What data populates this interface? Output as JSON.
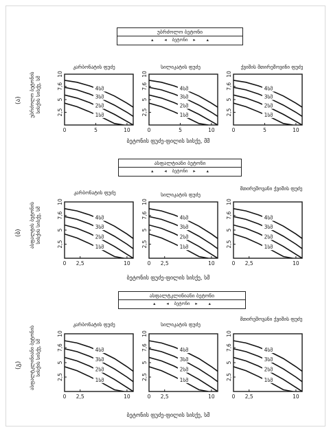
{
  "sections": [
    {
      "index_label": "(ა)",
      "banner_title": "უბრძოლო ბეტონი",
      "banner_sub": "ბეტონი",
      "ylabel_1": "უბრძოლო ბეტონის",
      "ylabel_2": "სისქის სისქე, სმ",
      "xlabel": "ბეტონის ფუძე-ფილის სისქე, მმ"
    },
    {
      "index_label": "(ბ)",
      "banner_title": "ასფალტიანი ბეტონი",
      "banner_sub": "ბეტონი",
      "ylabel_1": "ასფალტის ბეტონის",
      "ylabel_2": "სისქის სისქე, სმ",
      "xlabel": "ბეტონის ფუძე-ფილის სისქე, სმ"
    },
    {
      "index_label": "(გ)",
      "banner_title": "ასფალტკლინიანი ბეტონი",
      "banner_sub": "ბეტონი",
      "ylabel_1": "ასფალტკლინიანი ბეტონის",
      "ylabel_2": "სისქის სისქე, სმ",
      "xlabel": "ბეტონის ფუძე-ფილის სისქე, სმ"
    }
  ],
  "panel_titles_row1": [
    "კარბონატის ფუძე",
    "სილიკატის ფუძე",
    "ქვიშის მთირეშოვინი ფუძე"
  ],
  "panel_titles_row2": [
    "კარბონატის ფუძე",
    "სილიკატის ფუძე",
    "მთირეშოვანი ქვიშის ფუძე"
  ],
  "panel_titles_row3": [
    "კარბონატის ფუძე",
    "სილიკატის ფუძე",
    "მთირეშოვანი ქვიშის ფუძე"
  ],
  "chart_data": {
    "type": "line",
    "curve_labels": [
      "4სმ",
      "3სმ",
      "2სმ",
      "1სმ"
    ],
    "xlim": [
      0,
      11
    ],
    "ylim": [
      0,
      10
    ],
    "xticks_row1": [
      "0",
      "5",
      "10"
    ],
    "xticks_row23": [
      "0",
      "2,5",
      "10"
    ],
    "yticks": [
      "2,5",
      "5",
      "7,6",
      "10"
    ],
    "series": [
      {
        "label": "4სმ",
        "x": [
          0,
          2,
          4,
          6,
          8,
          10,
          11
        ],
        "y": [
          8.8,
          8.4,
          7.7,
          6.8,
          5.7,
          4.3,
          3.5
        ]
      },
      {
        "label": "3სმ",
        "x": [
          0,
          2,
          4,
          6,
          8,
          10,
          11
        ],
        "y": [
          7.4,
          6.9,
          6.1,
          5.1,
          3.9,
          2.5,
          1.7
        ]
      },
      {
        "label": "2სმ",
        "x": [
          0,
          2,
          4,
          6,
          8,
          10,
          11
        ],
        "y": [
          5.9,
          5.3,
          4.4,
          3.3,
          2.1,
          0.7,
          0.0
        ]
      },
      {
        "label": "1სმ",
        "x": [
          0,
          2,
          4,
          6,
          8,
          9.5
        ],
        "y": [
          4.3,
          3.6,
          2.6,
          1.5,
          0.3,
          0.0
        ]
      }
    ]
  }
}
